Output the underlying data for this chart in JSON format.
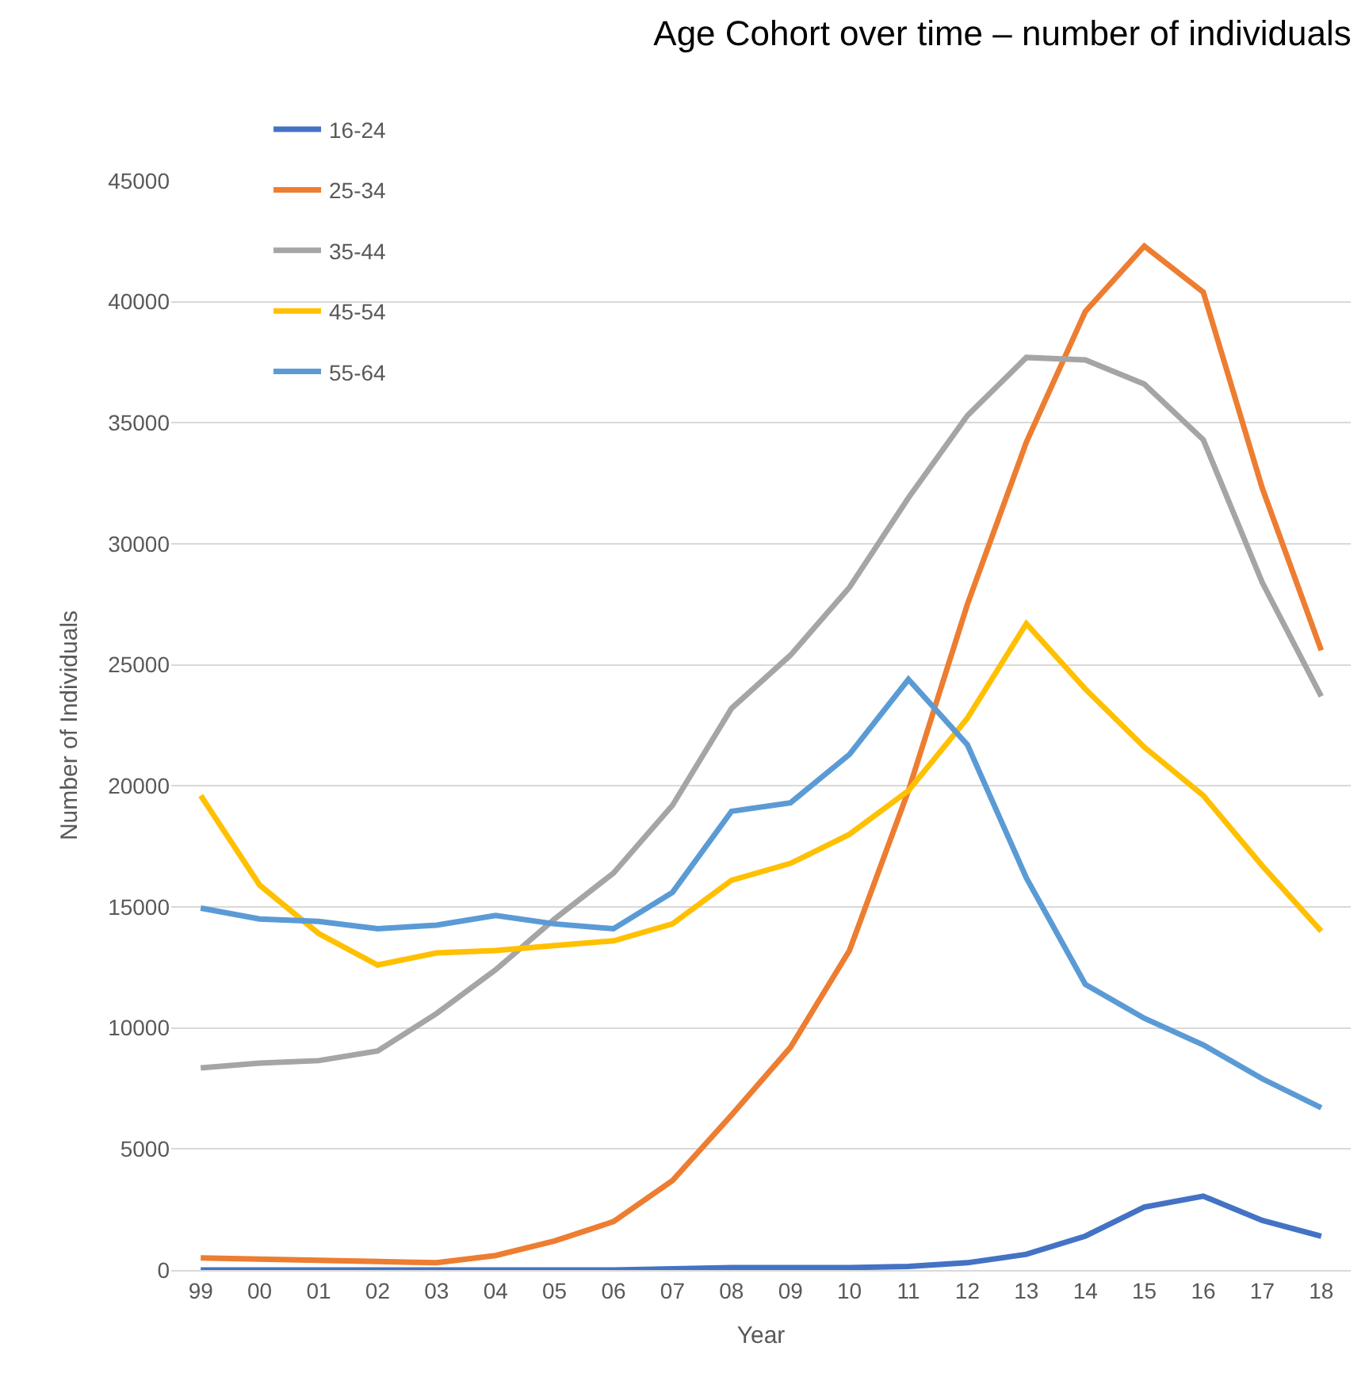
{
  "chart_data": {
    "type": "line",
    "title": "Age Cohort over time – number of individuals",
    "xlabel": "Year",
    "ylabel": "Number of Individuals",
    "categories": [
      "99",
      "00",
      "01",
      "02",
      "03",
      "04",
      "05",
      "06",
      "07",
      "08",
      "09",
      "10",
      "11",
      "12",
      "13",
      "14",
      "15",
      "16",
      "17",
      "18"
    ],
    "series": [
      {
        "name": "16-24",
        "color": "#4472c4",
        "values": [
          0,
          0,
          0,
          0,
          0,
          0,
          0,
          0,
          50,
          100,
          100,
          100,
          150,
          300,
          650,
          1400,
          2600,
          3050,
          2050,
          1400
        ]
      },
      {
        "name": "25-34",
        "color": "#ed7d31",
        "values": [
          500,
          450,
          400,
          350,
          300,
          600,
          1200,
          2000,
          3700,
          6400,
          9200,
          13200,
          19800,
          27500,
          34200,
          39600,
          42300,
          40400,
          32300,
          25600
        ]
      },
      {
        "name": "35-44",
        "color": "#a5a5a5",
        "values": [
          8350,
          8550,
          8650,
          9050,
          10600,
          12400,
          14500,
          16400,
          19200,
          23200,
          25400,
          28200,
          31900,
          35300,
          37700,
          37600,
          36600,
          34300,
          28400,
          23700
        ]
      },
      {
        "name": "45-54",
        "color": "#ffc000",
        "values": [
          19600,
          15900,
          13900,
          12600,
          13100,
          13200,
          13400,
          13600,
          14300,
          16100,
          16800,
          18000,
          19800,
          22800,
          26700,
          24000,
          21600,
          19600,
          16700,
          14000
        ]
      },
      {
        "name": "55-64",
        "color": "#5b9bd5",
        "values": [
          14950,
          14500,
          14400,
          14100,
          14250,
          14650,
          14300,
          14100,
          15600,
          18950,
          19300,
          21300,
          24400,
          21700,
          16200,
          11800,
          10400,
          9300,
          7900,
          6700
        ]
      }
    ],
    "ylim": [
      0,
      45000
    ],
    "yticks": [
      0,
      5000,
      10000,
      15000,
      20000,
      25000,
      30000,
      35000,
      40000,
      45000
    ],
    "grid": "y",
    "legend": "top left",
    "marker": "none",
    "line_style": "solid"
  }
}
